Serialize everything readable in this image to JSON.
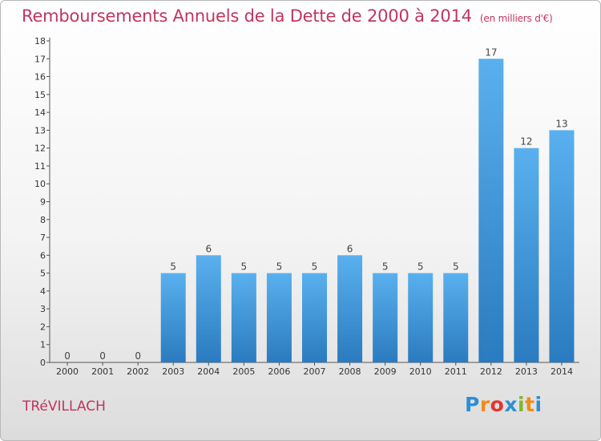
{
  "title": "Remboursements Annuels de la Dette de 2000 à 2014",
  "unit": "(en milliers d'€)",
  "commune": "TRéVILLACH",
  "logo": {
    "letters": [
      "P",
      "r",
      "o",
      "x",
      "i",
      "t",
      "i"
    ],
    "colors": [
      "#2d8fd6",
      "#f08c1a",
      "#e3342f",
      "#2d8fd6",
      "#7cb82f",
      "#f08c1a",
      "#2d8fd6"
    ]
  },
  "colors": {
    "accent": "#c0355e",
    "bar_light": "#5ab0ee",
    "bar_dark": "#2a7bbf"
  },
  "chart_data": {
    "type": "bar",
    "categories": [
      "2000",
      "2001",
      "2002",
      "2003",
      "2004",
      "2005",
      "2006",
      "2007",
      "2008",
      "2009",
      "2010",
      "2011",
      "2012",
      "2013",
      "2014"
    ],
    "values": [
      0,
      0,
      0,
      5,
      6,
      5,
      5,
      5,
      6,
      5,
      5,
      5,
      17,
      12,
      13
    ],
    "ylim": [
      0,
      18
    ],
    "yticks": [
      0,
      1,
      2,
      3,
      4,
      5,
      6,
      7,
      8,
      9,
      10,
      11,
      12,
      13,
      14,
      15,
      16,
      17,
      18
    ],
    "grid": false,
    "legend": "none"
  }
}
